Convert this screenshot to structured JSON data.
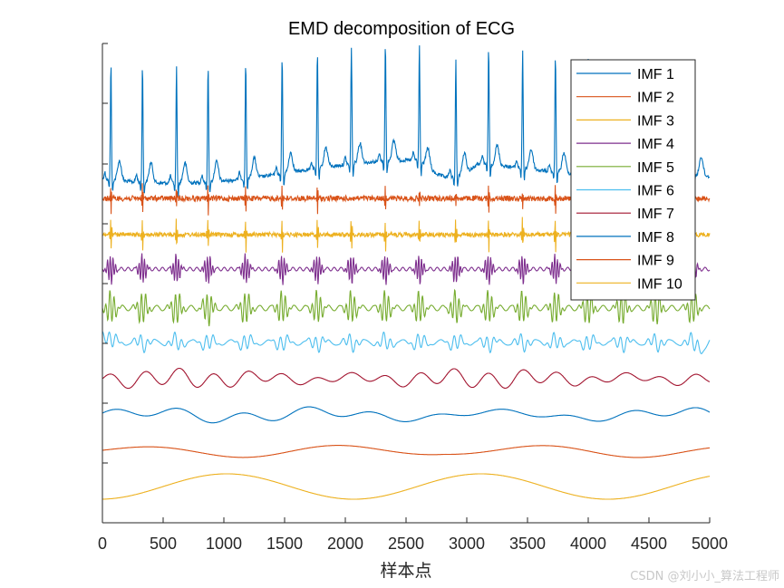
{
  "chart_data": {
    "type": "line",
    "title": "EMD decomposition of ECG",
    "xlabel": "样本点",
    "ylabel": "",
    "xlim": [
      0,
      5000
    ],
    "x_ticks": [
      0,
      500,
      1000,
      1500,
      2000,
      2500,
      3000,
      3500,
      4000,
      4500,
      5000
    ],
    "y_ticks": "unlabeled",
    "grid": false,
    "legend_position": "top-right",
    "series": [
      {
        "name": "IMF 1",
        "color": "#0072BD",
        "kind": "ecg"
      },
      {
        "name": "IMF 2",
        "color": "#D95319",
        "kind": "hf"
      },
      {
        "name": "IMF 3",
        "color": "#EDB120",
        "kind": "hf"
      },
      {
        "name": "IMF 4",
        "color": "#7E2F8E",
        "kind": "burst"
      },
      {
        "name": "IMF 5",
        "color": "#77AC30",
        "kind": "burst"
      },
      {
        "name": "IMF 6",
        "color": "#4DBEEE",
        "kind": "wave"
      },
      {
        "name": "IMF 7",
        "color": "#A2142F",
        "kind": "wave"
      },
      {
        "name": "IMF 8",
        "color": "#0072BD",
        "kind": "wave"
      },
      {
        "name": "IMF 9",
        "color": "#D95319",
        "kind": "slow"
      },
      {
        "name": "IMF 10",
        "color": "#EDB120",
        "kind": "slow"
      }
    ],
    "beat_positions": [
      70,
      330,
      610,
      870,
      1180,
      1480,
      1770,
      2050,
      2330,
      2610,
      2910,
      3180,
      3460,
      3730,
      4000,
      4280,
      4560,
      4860
    ]
  },
  "watermark": "CSDN @刘小小_算法工程师"
}
